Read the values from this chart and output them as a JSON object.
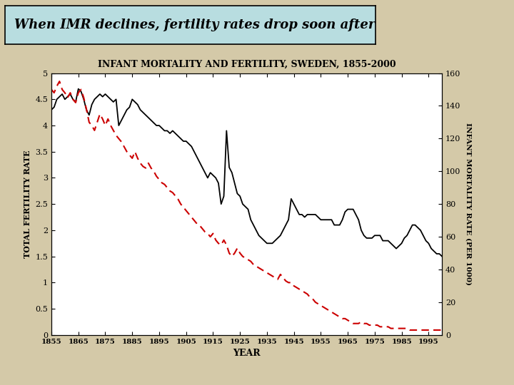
{
  "title": "INFANT MORTALITY AND FERTILITY, SWEDEN, 1855-2000",
  "xlabel": "YEAR",
  "ylabel_left": "TOTAL FERTILITY RATE",
  "ylabel_right": "INFANT MORTALITY RATE (PER 1000)",
  "header_text": "When IMR declines, fertility rates drop soon after",
  "header_bg": "#b8dde0",
  "bg_color": "#d4c9a8",
  "plot_bg": "#ffffff",
  "tfr_color": "#000000",
  "imr_color": "#cc0000",
  "ylim_left": [
    0,
    5
  ],
  "ylim_right": [
    0,
    160
  ],
  "yticks_left": [
    0,
    0.5,
    1,
    1.5,
    2,
    2.5,
    3,
    3.5,
    4,
    4.5,
    5
  ],
  "yticks_right": [
    0,
    20,
    40,
    60,
    80,
    100,
    120,
    140,
    160
  ],
  "xticks": [
    1855,
    1865,
    1875,
    1885,
    1895,
    1905,
    1915,
    1925,
    1935,
    1945,
    1955,
    1965,
    1975,
    1985,
    1995
  ],
  "years": [
    1855,
    1856,
    1857,
    1858,
    1859,
    1860,
    1861,
    1862,
    1863,
    1864,
    1865,
    1866,
    1867,
    1868,
    1869,
    1870,
    1871,
    1872,
    1873,
    1874,
    1875,
    1876,
    1877,
    1878,
    1879,
    1880,
    1881,
    1882,
    1883,
    1884,
    1885,
    1886,
    1887,
    1888,
    1889,
    1890,
    1891,
    1892,
    1893,
    1894,
    1895,
    1896,
    1897,
    1898,
    1899,
    1900,
    1901,
    1902,
    1903,
    1904,
    1905,
    1906,
    1907,
    1908,
    1909,
    1910,
    1911,
    1912,
    1913,
    1914,
    1915,
    1916,
    1917,
    1918,
    1919,
    1920,
    1921,
    1922,
    1923,
    1924,
    1925,
    1926,
    1927,
    1928,
    1929,
    1930,
    1931,
    1932,
    1933,
    1934,
    1935,
    1936,
    1937,
    1938,
    1939,
    1940,
    1941,
    1942,
    1943,
    1944,
    1945,
    1946,
    1947,
    1948,
    1949,
    1950,
    1951,
    1952,
    1953,
    1954,
    1955,
    1956,
    1957,
    1958,
    1959,
    1960,
    1961,
    1962,
    1963,
    1964,
    1965,
    1966,
    1967,
    1968,
    1969,
    1970,
    1971,
    1972,
    1973,
    1974,
    1975,
    1976,
    1977,
    1978,
    1979,
    1980,
    1981,
    1982,
    1983,
    1984,
    1985,
    1986,
    1987,
    1988,
    1989,
    1990,
    1991,
    1992,
    1993,
    1994,
    1995,
    1996,
    1997,
    1998,
    1999,
    2000
  ],
  "tfr": [
    4.3,
    4.35,
    4.5,
    4.55,
    4.6,
    4.5,
    4.55,
    4.6,
    4.5,
    4.45,
    4.7,
    4.65,
    4.5,
    4.3,
    4.2,
    4.4,
    4.5,
    4.55,
    4.6,
    4.55,
    4.6,
    4.55,
    4.5,
    4.45,
    4.5,
    4.0,
    4.1,
    4.2,
    4.3,
    4.35,
    4.5,
    4.45,
    4.4,
    4.3,
    4.25,
    4.2,
    4.15,
    4.1,
    4.05,
    4.0,
    4.0,
    3.95,
    3.9,
    3.9,
    3.85,
    3.9,
    3.85,
    3.8,
    3.75,
    3.7,
    3.7,
    3.65,
    3.6,
    3.5,
    3.4,
    3.3,
    3.2,
    3.1,
    3.0,
    3.1,
    3.05,
    3.0,
    2.9,
    2.5,
    2.65,
    3.9,
    3.2,
    3.1,
    2.9,
    2.7,
    2.65,
    2.5,
    2.45,
    2.4,
    2.2,
    2.1,
    2.0,
    1.9,
    1.85,
    1.8,
    1.75,
    1.75,
    1.75,
    1.8,
    1.85,
    1.9,
    2.0,
    2.1,
    2.2,
    2.6,
    2.5,
    2.4,
    2.3,
    2.3,
    2.25,
    2.3,
    2.3,
    2.3,
    2.3,
    2.25,
    2.2,
    2.2,
    2.2,
    2.2,
    2.2,
    2.1,
    2.1,
    2.1,
    2.2,
    2.35,
    2.4,
    2.4,
    2.4,
    2.3,
    2.2,
    2.0,
    1.9,
    1.85,
    1.85,
    1.85,
    1.9,
    1.9,
    1.9,
    1.8,
    1.8,
    1.8,
    1.75,
    1.7,
    1.65,
    1.7,
    1.75,
    1.85,
    1.9,
    2.0,
    2.1,
    2.1,
    2.05,
    2.0,
    1.9,
    1.8,
    1.75,
    1.65,
    1.6,
    1.55,
    1.55,
    1.5
  ],
  "imr": [
    150,
    148,
    152,
    155,
    150,
    148,
    145,
    148,
    144,
    142,
    148,
    150,
    145,
    138,
    130,
    128,
    125,
    130,
    135,
    132,
    128,
    132,
    128,
    125,
    122,
    120,
    118,
    115,
    112,
    110,
    108,
    112,
    108,
    105,
    103,
    102,
    105,
    102,
    100,
    97,
    95,
    93,
    92,
    90,
    88,
    87,
    85,
    83,
    80,
    78,
    76,
    74,
    72,
    70,
    68,
    67,
    65,
    63,
    62,
    60,
    62,
    58,
    56,
    55,
    58,
    55,
    50,
    48,
    50,
    53,
    50,
    48,
    47,
    46,
    45,
    43,
    42,
    41,
    40,
    39,
    38,
    37,
    36,
    35,
    34,
    37,
    35,
    33,
    32,
    32,
    30,
    29,
    28,
    27,
    26,
    25,
    23,
    22,
    20,
    19,
    18,
    17,
    16,
    15,
    14,
    13,
    12,
    11,
    10,
    10,
    9,
    8,
    7,
    7,
    7,
    8,
    7,
    7,
    6,
    6,
    6,
    6,
    5,
    5,
    5,
    5,
    4,
    4,
    4,
    4,
    4,
    4,
    4,
    3,
    3,
    3,
    3,
    3,
    3,
    3,
    3,
    3,
    3,
    3,
    3,
    3
  ]
}
